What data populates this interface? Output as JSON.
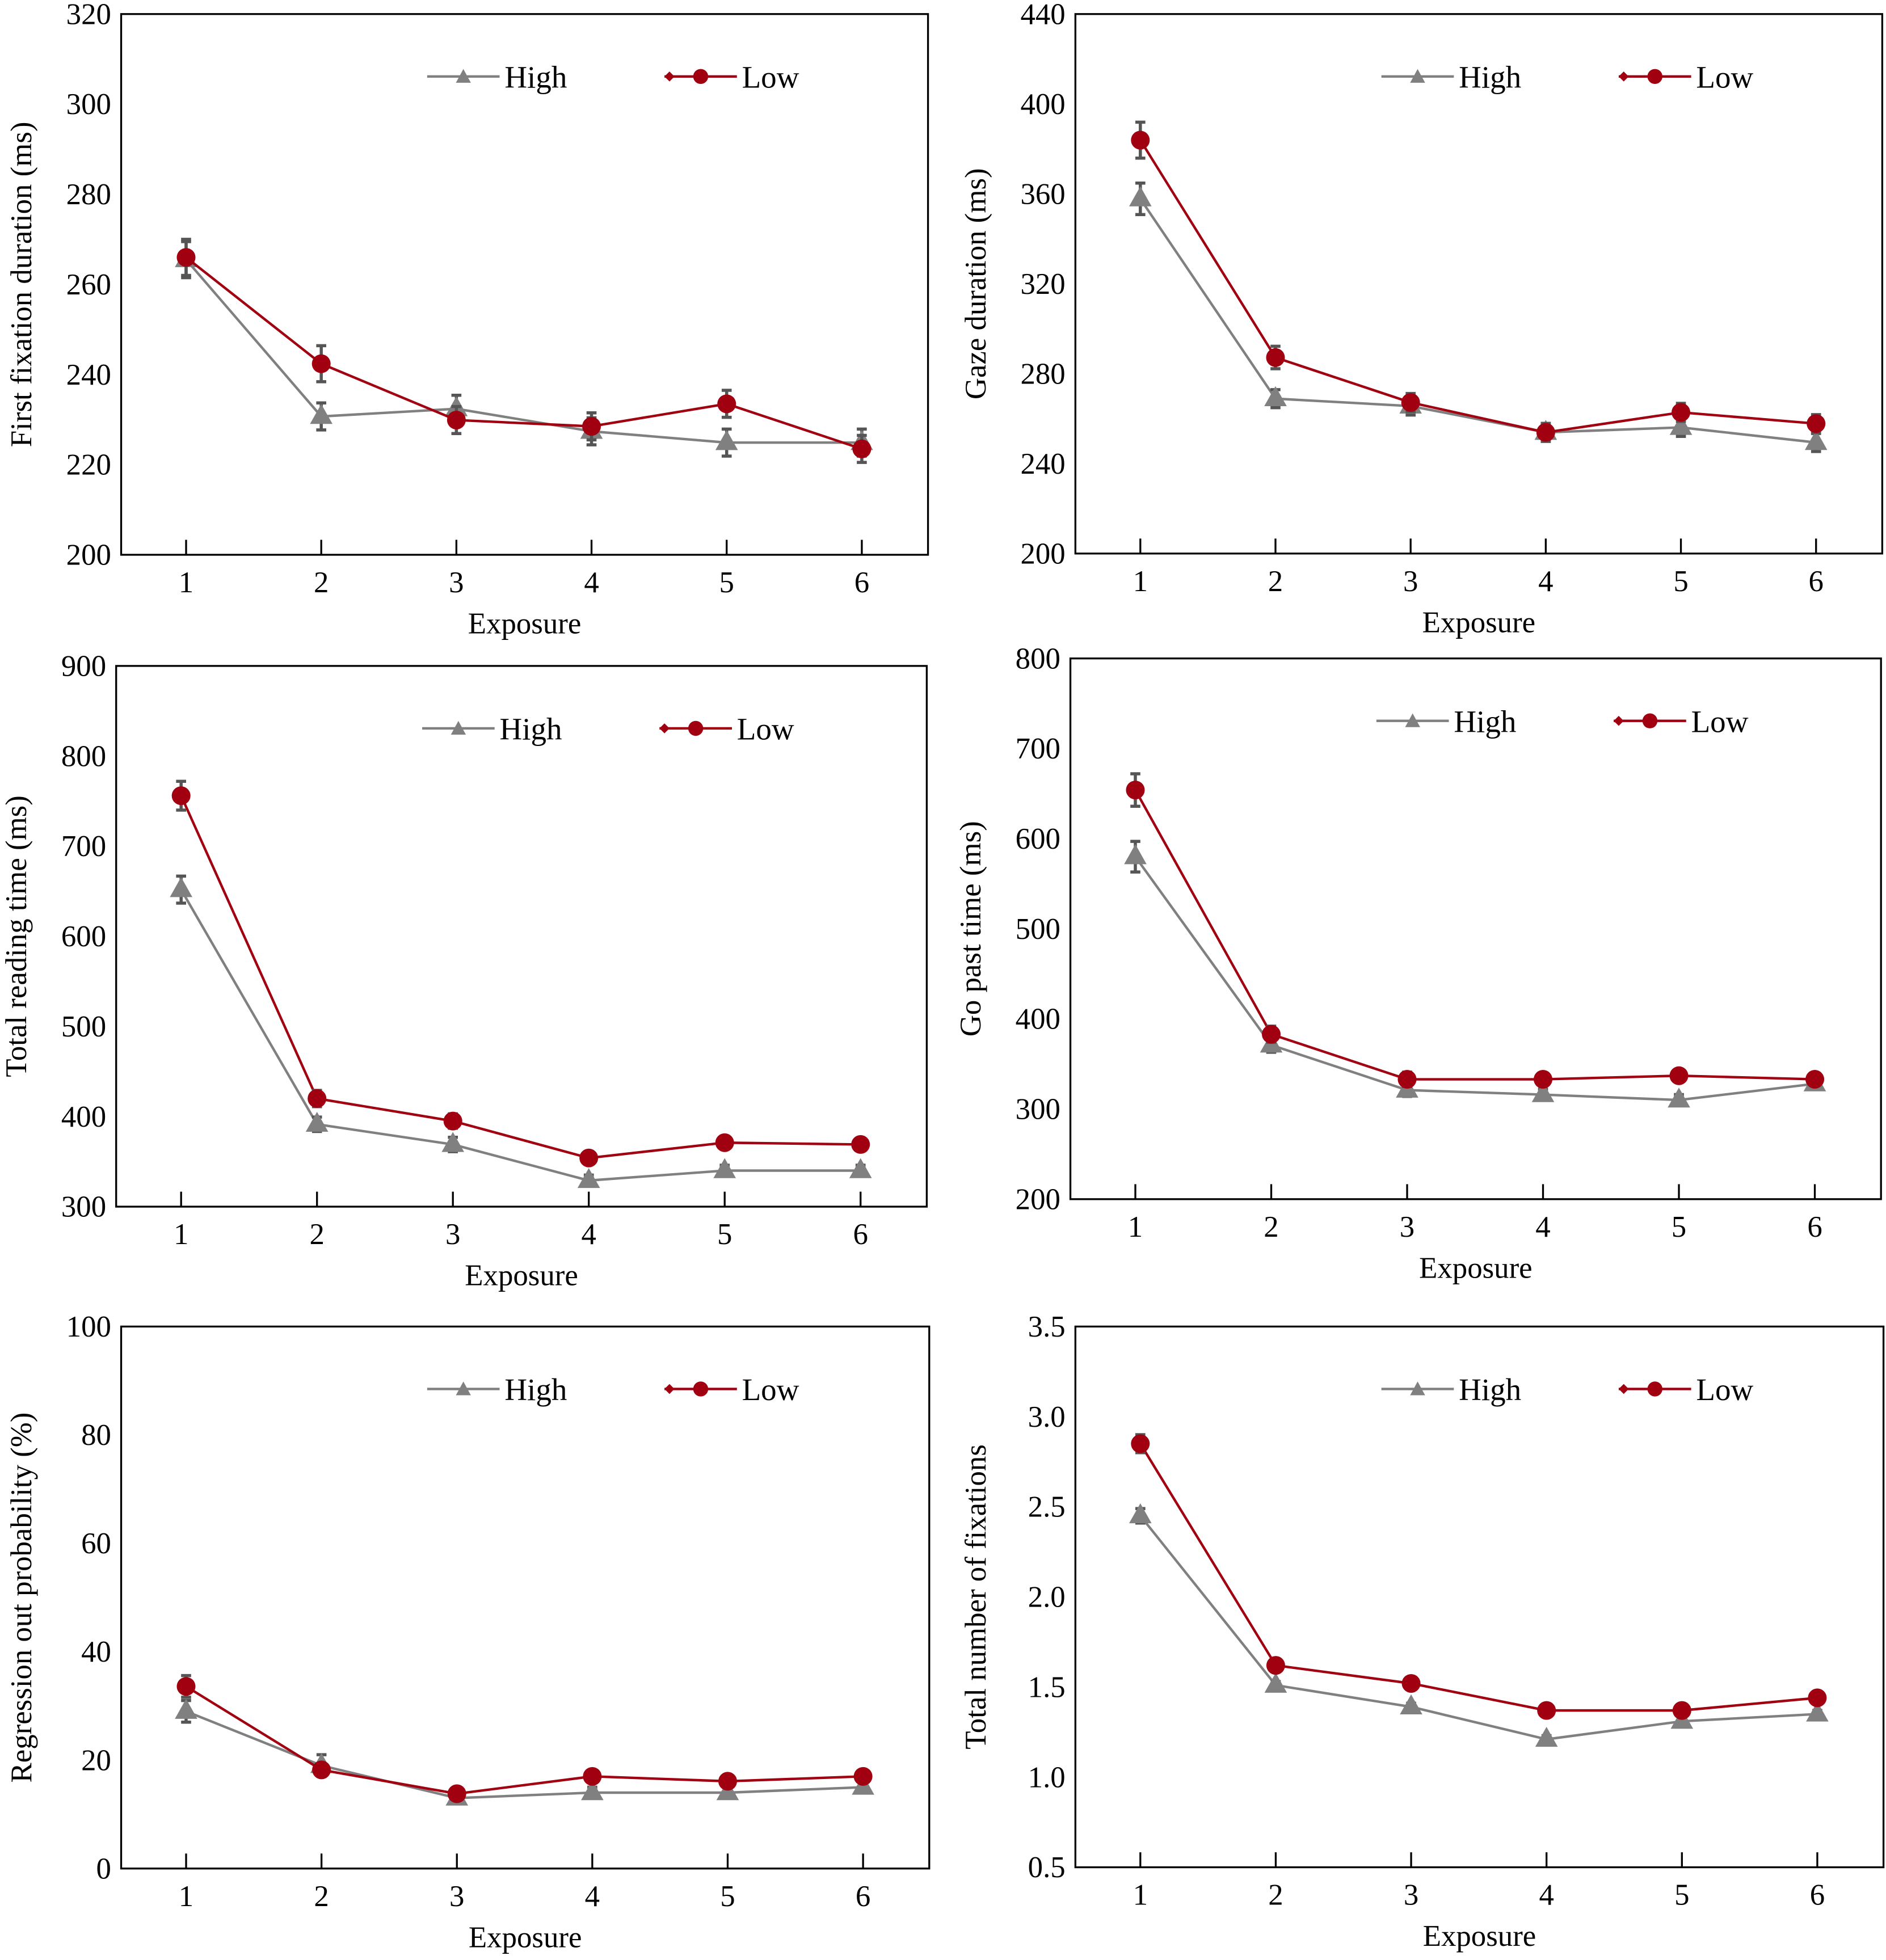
{
  "colors": {
    "High": "#808080",
    "Low": "#a00010"
  },
  "chart_data": [
    {
      "type": "line",
      "xlabel": "Exposure",
      "ylabel": "First fixation duration (ms)",
      "ylim": [
        200,
        320
      ],
      "yticks": [
        200,
        220,
        240,
        260,
        280,
        300,
        320
      ],
      "categories": [
        1,
        2,
        3,
        4,
        5,
        6
      ],
      "legend": "top-right",
      "grid": false,
      "series": [
        {
          "name": "High",
          "marker": "triangle",
          "values": [
            265.5,
            230.7,
            232.4,
            227.4,
            224.9,
            224.9
          ],
          "errors": [
            4,
            3,
            3,
            3,
            3,
            3
          ]
        },
        {
          "name": "Low",
          "marker": "circle",
          "values": [
            266,
            242.4,
            229.9,
            228.5,
            233.5,
            223.5
          ],
          "errors": [
            4,
            4,
            3,
            3,
            3,
            3
          ]
        }
      ]
    },
    {
      "type": "line",
      "xlabel": "Exposure",
      "ylabel": "Gaze duration (ms)",
      "ylim": [
        200,
        440
      ],
      "yticks": [
        200,
        240,
        280,
        320,
        360,
        400,
        440
      ],
      "categories": [
        1,
        2,
        3,
        4,
        5,
        6
      ],
      "legend": "top-right",
      "grid": false,
      "series": [
        {
          "name": "High",
          "marker": "triangle",
          "values": [
            357.8,
            268.9,
            265.6,
            253.9,
            256.1,
            249.4
          ],
          "errors": [
            7,
            4,
            4,
            4,
            4,
            4
          ]
        },
        {
          "name": "Low",
          "marker": "circle",
          "values": [
            383.9,
            287.2,
            267.2,
            253.9,
            262.8,
            257.8
          ],
          "errors": [
            8,
            5,
            4,
            4,
            4,
            4
          ]
        }
      ]
    },
    {
      "type": "line",
      "xlabel": "Exposure",
      "ylabel": "Total reading time (ms)",
      "ylim": [
        300,
        900
      ],
      "yticks": [
        300,
        400,
        500,
        600,
        700,
        800,
        900
      ],
      "categories": [
        1,
        2,
        3,
        4,
        5,
        6
      ],
      "legend": "top-right",
      "grid": false,
      "series": [
        {
          "name": "High",
          "marker": "triangle",
          "values": [
            651.8,
            391.4,
            369,
            329,
            340,
            340
          ],
          "errors": [
            15,
            8,
            8,
            6,
            6,
            6
          ]
        },
        {
          "name": "Low",
          "marker": "circle",
          "values": [
            756,
            420,
            395,
            354,
            371,
            369
          ],
          "errors": [
            16,
            9,
            8,
            7,
            7,
            7
          ]
        }
      ]
    },
    {
      "type": "line",
      "xlabel": "Exposure",
      "ylabel": "Go past time (ms)",
      "ylim": [
        200,
        800
      ],
      "yticks": [
        200,
        300,
        400,
        500,
        600,
        700,
        800
      ],
      "categories": [
        1,
        2,
        3,
        4,
        5,
        6
      ],
      "legend": "top-right",
      "grid": false,
      "series": [
        {
          "name": "High",
          "marker": "triangle",
          "values": [
            580,
            371,
            321,
            316,
            310,
            328
          ],
          "errors": [
            17,
            8,
            7,
            6,
            6,
            6
          ]
        },
        {
          "name": "Low",
          "marker": "circle",
          "values": [
            654,
            383,
            333,
            333,
            337,
            333
          ],
          "errors": [
            18,
            9,
            8,
            7,
            7,
            7
          ]
        }
      ]
    },
    {
      "type": "line",
      "xlabel": "Exposure",
      "ylabel": "Regression out probability (%)",
      "ylim": [
        0,
        100
      ],
      "yticks": [
        0,
        20,
        40,
        60,
        80,
        100
      ],
      "categories": [
        1,
        2,
        3,
        4,
        5,
        6
      ],
      "legend": "top-right",
      "grid": false,
      "series": [
        {
          "name": "High",
          "marker": "triangle",
          "values": [
            29,
            19,
            13,
            14,
            14,
            15
          ],
          "errors": [
            2,
            2,
            1,
            1,
            1,
            1
          ]
        },
        {
          "name": "Low",
          "marker": "circle",
          "values": [
            33.6,
            18.2,
            13.8,
            17,
            16.1,
            17
          ],
          "errors": [
            2,
            1,
            1,
            1,
            1,
            1
          ]
        }
      ]
    },
    {
      "type": "line",
      "xlabel": "Exposure",
      "ylabel": "Total number of fixations",
      "ylim": [
        0.5,
        3.5
      ],
      "yticks": [
        "0.5",
        "1.0",
        "1.5",
        "2.0",
        "2.5",
        "3.0",
        "3.5"
      ],
      "categories": [
        1,
        2,
        3,
        4,
        5,
        6
      ],
      "legend": "top-right",
      "grid": false,
      "series": [
        {
          "name": "High",
          "marker": "triangle",
          "values": [
            2.45,
            1.51,
            1.39,
            1.21,
            1.31,
            1.35
          ],
          "errors": [
            0.04,
            0.02,
            0.02,
            0.02,
            0.02,
            0.02
          ]
        },
        {
          "name": "Low",
          "marker": "circle",
          "values": [
            2.85,
            1.62,
            1.52,
            1.37,
            1.37,
            1.44
          ],
          "errors": [
            0.05,
            0.02,
            0.03,
            0.02,
            0.02,
            0.02
          ]
        }
      ]
    }
  ]
}
